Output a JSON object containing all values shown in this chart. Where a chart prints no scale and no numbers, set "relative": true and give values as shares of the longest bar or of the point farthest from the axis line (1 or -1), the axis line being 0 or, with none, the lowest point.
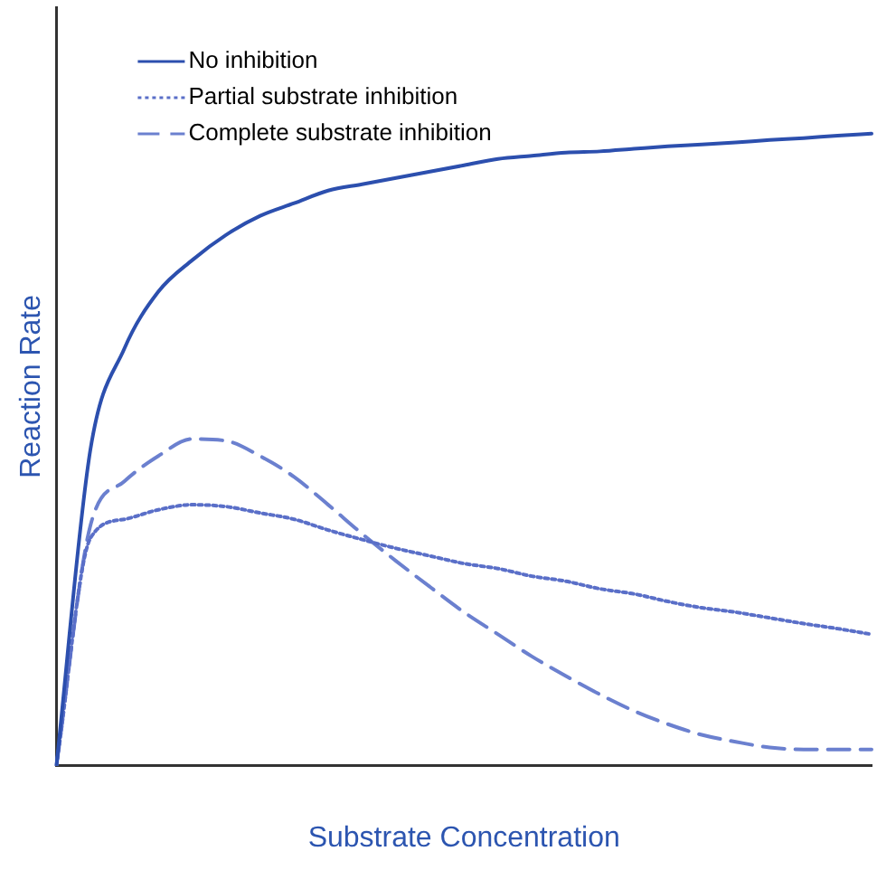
{
  "chart_data": {
    "type": "line",
    "relative": true,
    "xlabel": "Substrate Concentration",
    "ylabel": "Reaction Rate",
    "legend": "top left",
    "grid": false,
    "marker": "none",
    "categories": [
      null,
      null,
      null,
      null,
      null,
      null,
      null,
      null,
      null,
      null,
      null,
      null,
      null,
      null,
      null,
      null,
      null,
      null,
      null,
      null,
      null,
      null,
      null,
      null,
      null
    ],
    "series": [
      {
        "name": "No inhibition",
        "color": "#2c4fae",
        "line_style": "solid",
        "values": [
          0,
          0.5,
          0.66,
          0.75,
          0.8,
          0.84,
          0.87,
          0.89,
          0.91,
          0.92,
          0.93,
          0.94,
          0.95,
          0.96,
          0.965,
          0.97,
          0.972,
          0.976,
          0.98,
          0.983,
          0.986,
          0.99,
          0.993,
          0.997,
          1
        ]
      },
      {
        "name": "Partial substrate inhibition",
        "color": "#5a6fc8",
        "line_style": "dotted",
        "values": [
          0,
          0.36,
          0.39,
          0.405,
          0.413,
          0.41,
          0.4,
          0.39,
          0.373,
          0.358,
          0.344,
          0.332,
          0.32,
          0.312,
          0.3,
          0.292,
          0.28,
          0.272,
          0.26,
          0.25,
          0.243,
          0.234,
          0.225,
          0.217,
          0.208
        ]
      },
      {
        "name": "Complete substrate inhibition",
        "color": "#6b80cf",
        "line_style": "dashed",
        "values": [
          0,
          0.38,
          0.45,
          0.49,
          0.517,
          0.514,
          0.49,
          0.457,
          0.413,
          0.367,
          0.324,
          0.283,
          0.243,
          0.208,
          0.173,
          0.142,
          0.113,
          0.087,
          0.066,
          0.049,
          0.038,
          0.029,
          0.026,
          0.026,
          0.026
        ]
      }
    ]
  }
}
